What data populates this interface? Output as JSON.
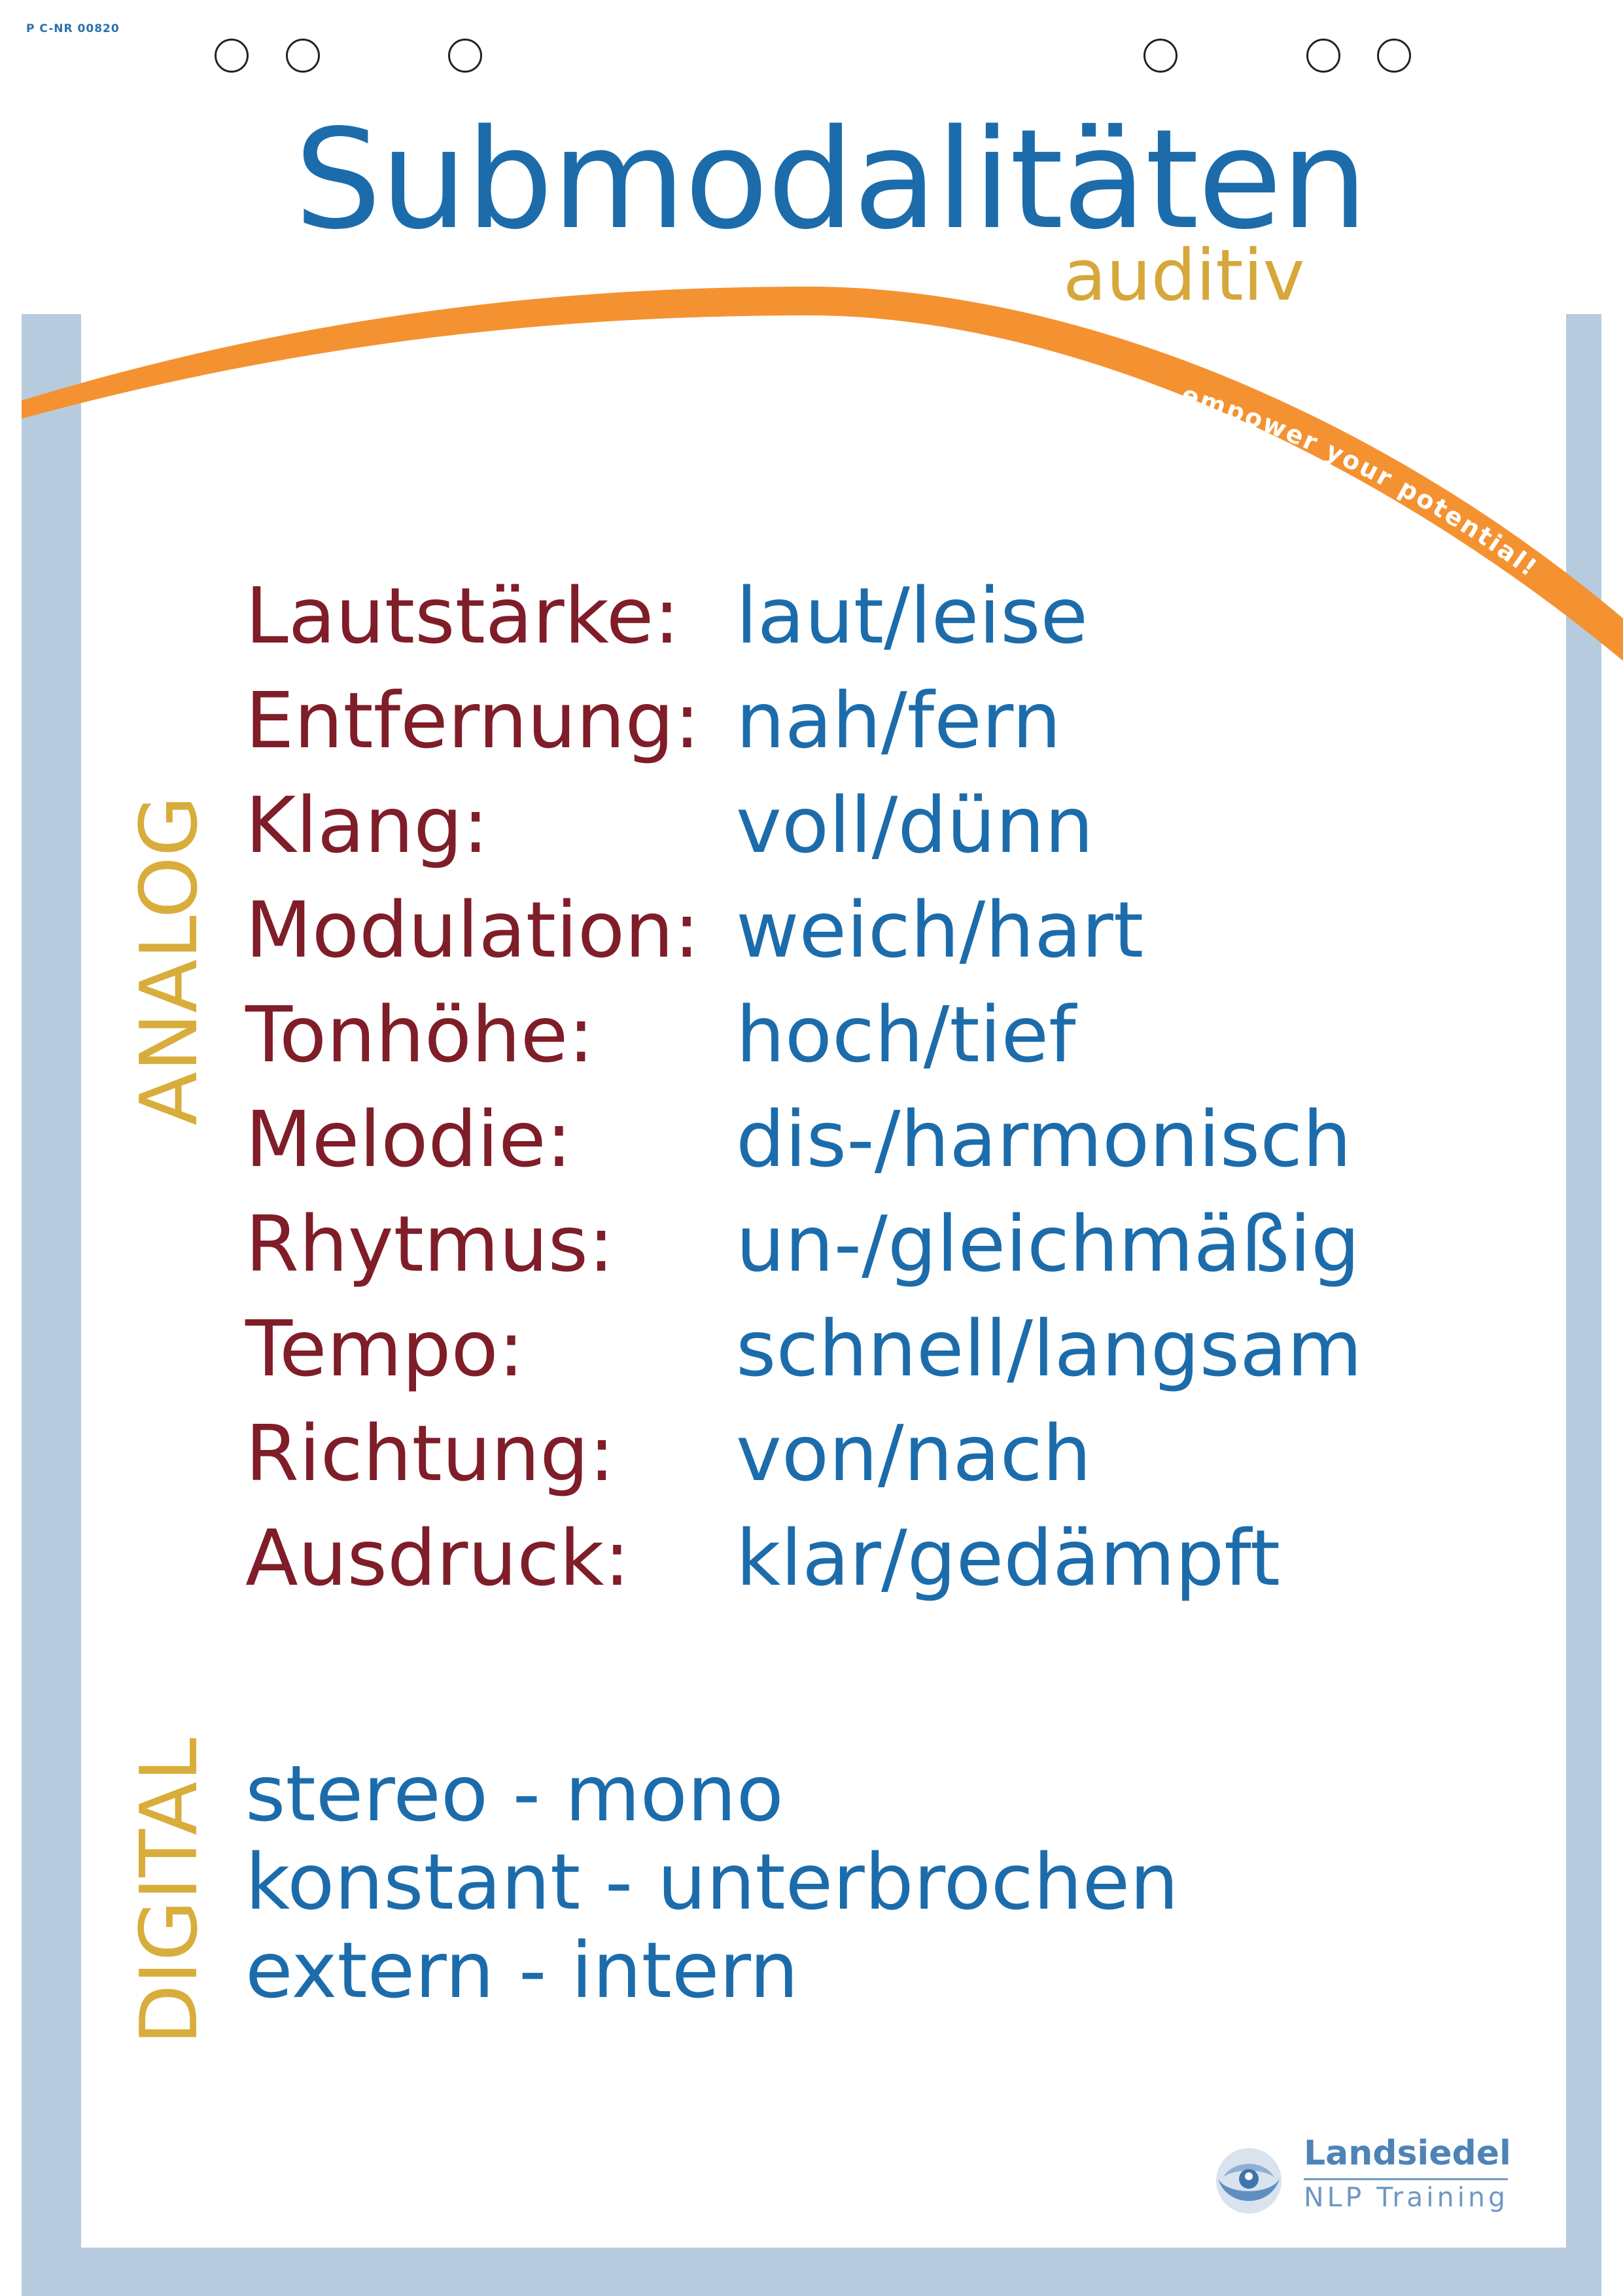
{
  "poster": {
    "code": "P C-NR 00820",
    "title": "Submodalitäten",
    "subtitle": "auditiv",
    "tagline": "... empower your potential!",
    "colors": {
      "title_blue": "#1c6cab",
      "label_red": "#7f1d28",
      "accent_gold": "#d9ad3c",
      "arc_orange": "#f49232",
      "frame_blue": "#b7cbdf"
    }
  },
  "analog": {
    "heading": "ANALOG",
    "rows": [
      {
        "label": "Lautstärke:",
        "value": "laut/leise"
      },
      {
        "label": "Entfernung:",
        "value": "nah/fern"
      },
      {
        "label": "Klang:",
        "value": "voll/dünn"
      },
      {
        "label": "Modulation:",
        "value": "weich/hart"
      },
      {
        "label": "Tonhöhe:",
        "value": "hoch/tief"
      },
      {
        "label": "Melodie:",
        "value": "dis-/harmonisch"
      },
      {
        "label": "Rhytmus:",
        "value": "un-/gleichmäßig"
      },
      {
        "label": "Tempo:",
        "value": "schnell/langsam"
      },
      {
        "label": "Richtung:",
        "value": "von/nach"
      },
      {
        "label": "Ausdruck:",
        "value": "klar/gedämpft"
      }
    ]
  },
  "digital": {
    "heading": "DIGITAL",
    "lines": [
      "stereo - mono",
      "konstant - unterbrochen",
      "extern - intern"
    ]
  },
  "logo": {
    "icon": "eye-person-icon",
    "name": "Landsiedel",
    "sub": "NLP Training"
  }
}
